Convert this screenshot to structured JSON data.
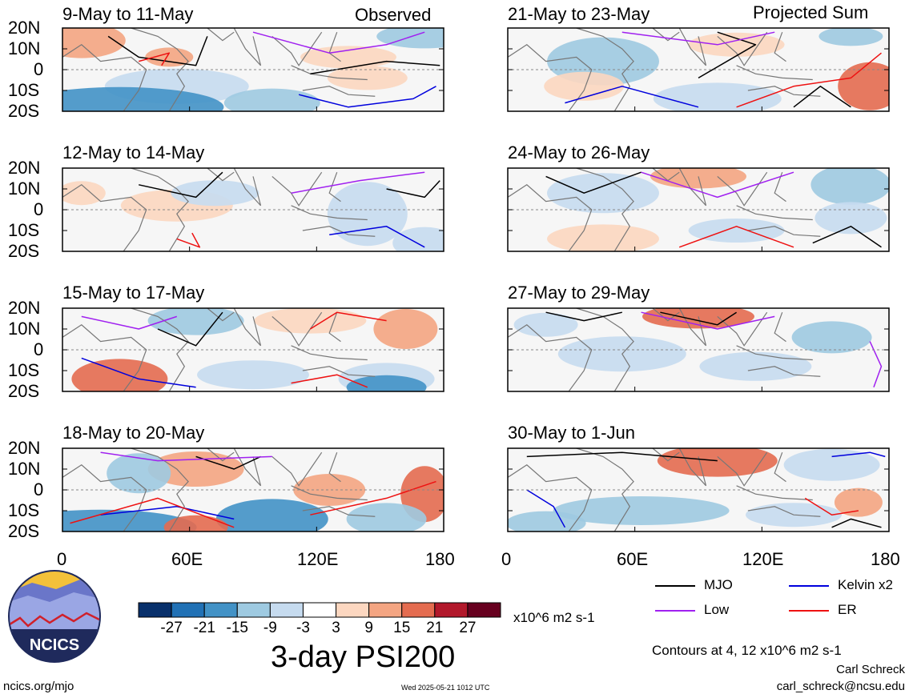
{
  "chart_data": {
    "type": "heatmap",
    "title": "3-day PSI200",
    "colorbar": {
      "units": "x10^6 m2 s-1",
      "ticks": [
        "-27",
        "-21",
        "-15",
        "-9",
        "-3",
        "3",
        "9",
        "15",
        "21",
        "27"
      ],
      "colors": [
        "#08306b",
        "#2171b5",
        "#4292c6",
        "#9ecae1",
        "#c6dbef",
        "#ffffff",
        "#fcd7c0",
        "#f4a582",
        "#e46c50",
        "#b2182b",
        "#67001f"
      ]
    },
    "x_ticks": [
      "0",
      "60E",
      "120E",
      "180"
    ],
    "y_ticks": [
      "20N",
      "10N",
      "0",
      "10S",
      "20S"
    ],
    "xlim": [
      0,
      180
    ],
    "ylim": [
      -20,
      20
    ],
    "columns": [
      {
        "header": "Observed",
        "panels": [
          {
            "title": "9-May to 11-May"
          },
          {
            "title": "12-May to 14-May"
          },
          {
            "title": "15-May to 17-May"
          },
          {
            "title": "18-May to 20-May"
          }
        ]
      },
      {
        "header": "Projected Sum",
        "panels": [
          {
            "title": "21-May to 23-May"
          },
          {
            "title": "24-May to 26-May"
          },
          {
            "title": "27-May to 29-May"
          },
          {
            "title": "30-May to 1-Jun"
          }
        ]
      }
    ],
    "legend": [
      {
        "label": "MJO",
        "color": "#000000"
      },
      {
        "label": "Kelvin x2",
        "color": "#0000dd"
      },
      {
        "label": "Low",
        "color": "#a020f0"
      },
      {
        "label": "ER",
        "color": "#ee1111"
      }
    ],
    "contour_note": "Contours at 4, 12 x10^6 m2 s-1"
  },
  "footer": {
    "logo_text": "NCICS",
    "url": "ncics.org/mjo",
    "timestamp": "Wed 2025-05-21 1012 UTC",
    "author": "Carl Schreck",
    "email": "carl_schreck@ncsu.edu"
  }
}
